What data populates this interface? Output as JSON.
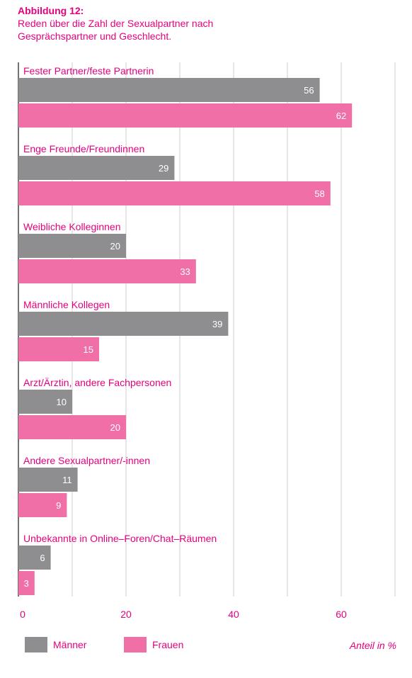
{
  "figure": {
    "label": "Abbildung 12:",
    "title": "Reden über die Zahl der Sexualpartner nach Gesprächspartner und Geschlecht."
  },
  "colors": {
    "maenner": "#8e8e90",
    "frauen": "#ef6fa6",
    "text": "#e6007e",
    "grid": "#cfcfcf"
  },
  "chart_data": {
    "type": "bar",
    "orientation": "horizontal",
    "categories": [
      "Fester Partner/feste Partnerin",
      "Enge Freunde/Freundinnen",
      "Weibliche Kolleginnen",
      "Männliche Kollegen",
      "Arzt/Ärztin, andere Fachpersonen",
      "Andere Sexualpartner/-innen",
      "Unbekannte in Online–Foren/Chat–Räumen"
    ],
    "series": [
      {
        "name": "Männer",
        "values": [
          56,
          29,
          20,
          39,
          10,
          11,
          6
        ]
      },
      {
        "name": "Frauen",
        "values": [
          62,
          58,
          33,
          15,
          20,
          9,
          3
        ]
      }
    ],
    "xlim": [
      0,
      70
    ],
    "xticks": [
      0,
      20,
      40,
      60
    ],
    "gridlines": [
      10,
      20,
      30,
      40,
      50,
      60,
      70
    ],
    "xlabel": "Anteil in %",
    "legend_placement": "bottom"
  },
  "legend": {
    "maenner_label": "Männer",
    "frauen_label": "Frauen",
    "unit_label": "Anteil in %"
  }
}
